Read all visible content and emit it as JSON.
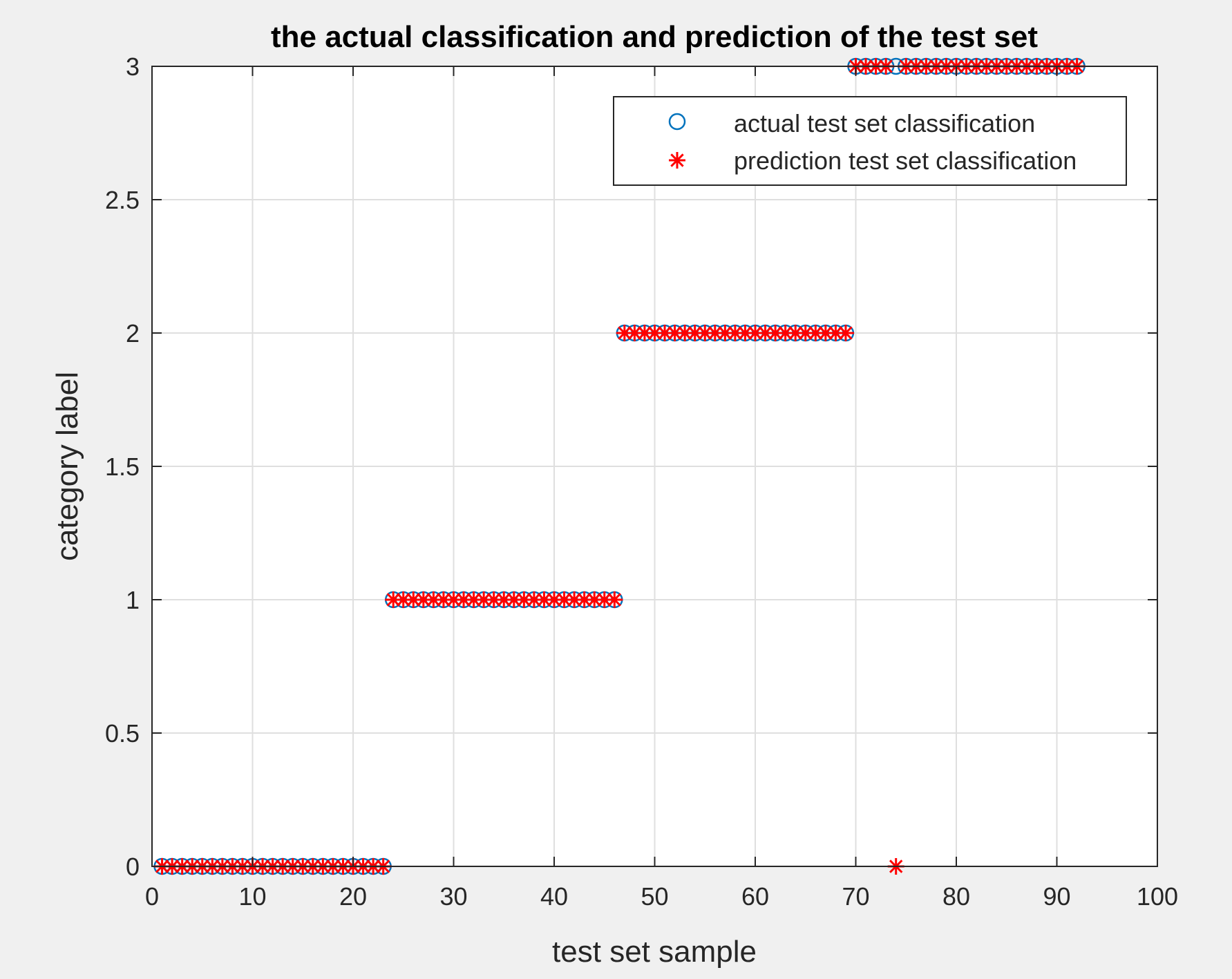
{
  "chart_data": {
    "type": "scatter",
    "title": "the actual classification and prediction of the test set",
    "xlabel": "test set sample",
    "ylabel": "category label",
    "xlim": [
      0,
      100
    ],
    "ylim": [
      0,
      3
    ],
    "xticks": [
      0,
      10,
      20,
      30,
      40,
      50,
      60,
      70,
      80,
      90,
      100
    ],
    "xtick_labels": [
      "0",
      "10",
      "20",
      "30",
      "40",
      "50",
      "60",
      "70",
      "80",
      "90",
      "100"
    ],
    "yticks": [
      0,
      0.5,
      1,
      1.5,
      2,
      2.5,
      3
    ],
    "ytick_labels": [
      "0",
      "0.5",
      "1",
      "1.5",
      "2",
      "2.5",
      "3"
    ],
    "grid": true,
    "legend_position": "top-right",
    "series": [
      {
        "name": "actual test set classification",
        "marker": "circle",
        "color": "#0072bd",
        "segments": [
          {
            "x_start": 1,
            "x_end": 23,
            "y": 0
          },
          {
            "x_start": 24,
            "x_end": 46,
            "y": 1
          },
          {
            "x_start": 47,
            "x_end": 69,
            "y": 2
          },
          {
            "x_start": 70,
            "x_end": 92,
            "y": 3
          }
        ]
      },
      {
        "name": "prediction test set classification",
        "marker": "asterisk",
        "color": "#ff0000",
        "segments": [
          {
            "x_start": 1,
            "x_end": 23,
            "y": 0
          },
          {
            "x_start": 24,
            "x_end": 46,
            "y": 1
          },
          {
            "x_start": 47,
            "x_end": 69,
            "y": 2
          },
          {
            "x_start": 70,
            "x_end": 73,
            "y": 3
          },
          {
            "x_start": 74,
            "x_end": 74,
            "y": 0
          },
          {
            "x_start": 75,
            "x_end": 92,
            "y": 3
          }
        ]
      }
    ]
  }
}
